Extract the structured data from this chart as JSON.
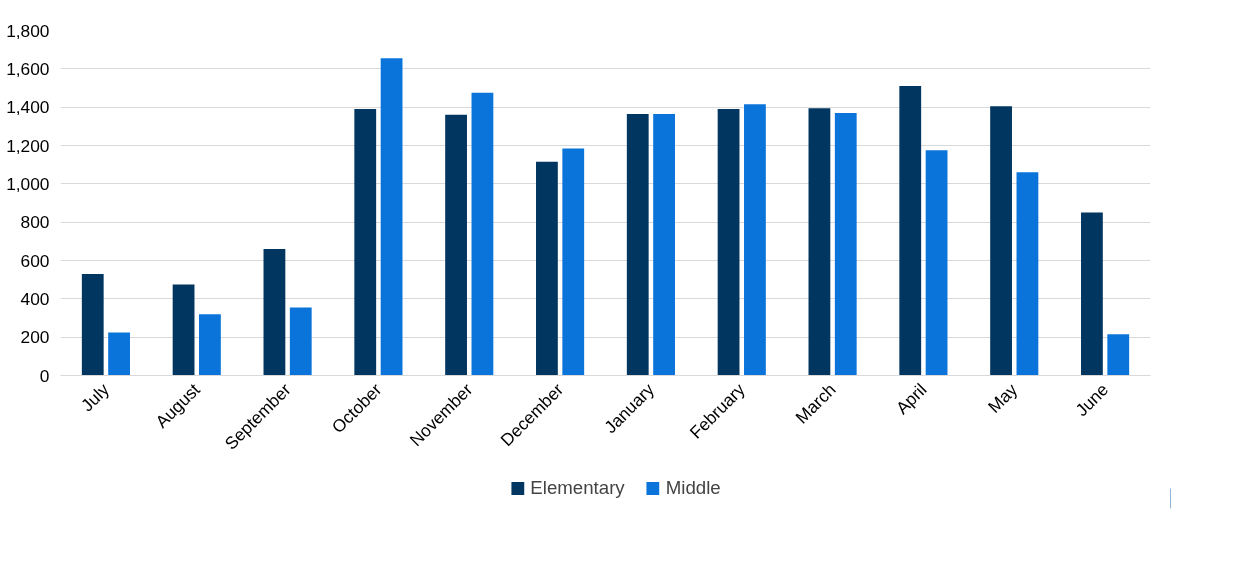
{
  "chart_data": {
    "type": "bar",
    "categories": [
      "July",
      "August",
      "September",
      "October",
      "November",
      "December",
      "January",
      "February",
      "March",
      "April",
      "May",
      "June"
    ],
    "series": [
      {
        "name": "Elementary",
        "color": "#003660",
        "values": [
          530,
          475,
          660,
          1390,
          1360,
          1115,
          1365,
          1390,
          1395,
          1510,
          1405,
          850
        ]
      },
      {
        "name": "Middle",
        "color": "#0a74da",
        "values": [
          225,
          320,
          355,
          1655,
          1475,
          1185,
          1365,
          1415,
          1370,
          1175,
          1060,
          215
        ]
      }
    ],
    "ylim": [
      0,
      1800
    ],
    "yticks": [
      {
        "value": 0,
        "label": "0"
      },
      {
        "value": 200,
        "label": "200"
      },
      {
        "value": 400,
        "label": "400"
      },
      {
        "value": 600,
        "label": "600"
      },
      {
        "value": 800,
        "label": "800"
      },
      {
        "value": 1000,
        "label": "1,000"
      },
      {
        "value": 1200,
        "label": "1,200"
      },
      {
        "value": 1400,
        "label": "1,400"
      },
      {
        "value": 1600,
        "label": "1,600"
      },
      {
        "value": 1800,
        "label": "1,800"
      }
    ],
    "grid": "y",
    "legend": "bottom"
  }
}
